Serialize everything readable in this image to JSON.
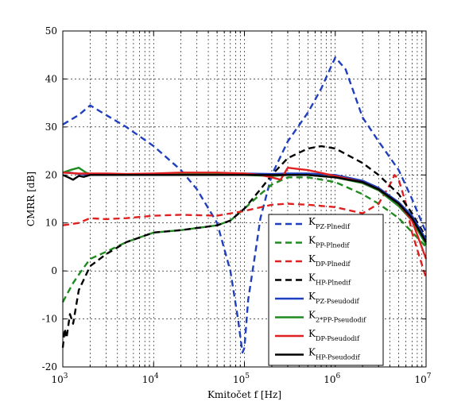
{
  "chart_data": {
    "type": "line",
    "xlabel": "Kmitočet f [Hz]",
    "ylabel": "CMRR [dB]",
    "xscale": "log",
    "xlim": [
      1000,
      10000000
    ],
    "ylim": [
      -20,
      50
    ],
    "grid": "on",
    "legend_position": "lower-right",
    "x_ticks": [
      {
        "value": 1000,
        "base": "10",
        "exp": "3"
      },
      {
        "value": 10000,
        "base": "10",
        "exp": "4"
      },
      {
        "value": 100000,
        "base": "10",
        "exp": "5"
      },
      {
        "value": 1000000,
        "base": "10",
        "exp": "6"
      },
      {
        "value": 10000000,
        "base": "10",
        "exp": "7"
      }
    ],
    "y_ticks": [
      {
        "value": -20,
        "label": "-20"
      },
      {
        "value": -10,
        "label": "-10"
      },
      {
        "value": 0,
        "label": "0"
      },
      {
        "value": 10,
        "label": "10"
      },
      {
        "value": 20,
        "label": "20"
      },
      {
        "value": 30,
        "label": "30"
      },
      {
        "value": 40,
        "label": "40"
      },
      {
        "value": 50,
        "label": "50"
      }
    ],
    "series": [
      {
        "name": "K PZ-Plnedif",
        "name_main": "K",
        "name_sub": "PZ-Plnedif",
        "color": "#1f3fbf",
        "dash": "dashed",
        "x": [
          1000,
          1500,
          2000,
          3000,
          5000,
          10000,
          20000,
          30000,
          50000,
          70000,
          85000,
          95000,
          100000,
          110000,
          130000,
          150000,
          200000,
          300000,
          500000,
          700000,
          1000000,
          1300000,
          2000000,
          3000000,
          5000000,
          7000000,
          10000000
        ],
        "y": [
          30.5,
          32.5,
          34.5,
          32.5,
          30,
          26,
          21,
          17,
          10,
          0,
          -10,
          -17,
          -16,
          -6,
          3,
          11,
          20,
          27,
          33,
          38,
          44.5,
          42,
          32,
          27,
          21,
          15,
          8
        ]
      },
      {
        "name": "K PP-Plnedif",
        "name_main": "K",
        "name_sub": "PP-Plnedif",
        "color": "#1f8a1f",
        "dash": "dashed",
        "x": [
          1000,
          1100,
          1300,
          1600,
          2000,
          3000,
          5000,
          10000,
          20000,
          50000,
          70000,
          100000,
          150000,
          200000,
          300000,
          500000,
          1000000,
          2000000,
          3000000,
          5000000,
          10000000
        ],
        "y": [
          -6.5,
          -5,
          -2.5,
          0,
          2.5,
          4,
          6,
          8,
          8.5,
          9.5,
          10.5,
          13,
          16,
          18,
          19.5,
          19.5,
          18.5,
          16,
          14,
          11,
          5
        ]
      },
      {
        "name": "K DP-Plnedif",
        "name_main": "K",
        "name_sub": "DP-Plnedif",
        "color": "#e02020",
        "dash": "dashed",
        "x": [
          1000,
          1500,
          2000,
          3000,
          5000,
          10000,
          20000,
          50000,
          100000,
          200000,
          300000,
          500000,
          1000000,
          2000000,
          3000000,
          4000000,
          4500000,
          5000000,
          6000000,
          7000000,
          10000000
        ],
        "y": [
          9.5,
          10,
          11,
          10.8,
          11,
          11.5,
          11.7,
          11.5,
          12.5,
          13.8,
          14,
          13.8,
          13.3,
          12,
          14,
          18,
          20,
          19,
          14,
          8,
          -1.5
        ]
      },
      {
        "name": "K HP-Plnedif",
        "name_main": "K",
        "name_sub": "HP-Plnedif",
        "color": "#000000",
        "dash": "dashed",
        "x": [
          1000,
          1050,
          1100,
          1200,
          1300,
          1500,
          2000,
          3000,
          5000,
          10000,
          20000,
          50000,
          70000,
          100000,
          150000,
          200000,
          300000,
          500000,
          700000,
          1000000,
          2000000,
          3000000,
          5000000,
          7000000,
          10000000
        ],
        "y": [
          -16,
          -12,
          -14,
          -9,
          -11,
          -4,
          1,
          3.5,
          6,
          8,
          8.5,
          9.5,
          10.5,
          13,
          17,
          20,
          23.5,
          25.5,
          26,
          25.5,
          22.5,
          20,
          16,
          12,
          7
        ]
      },
      {
        "name": "K PZ-Pseudodif",
        "name_main": "K",
        "name_sub": "PZ-Pseudodif",
        "color": "#1f3fbf",
        "dash": "solid",
        "x": [
          1000,
          1200,
          1500,
          2000,
          3000,
          5000,
          10000,
          20000,
          50000,
          100000,
          200000,
          300000,
          500000,
          1000000,
          2000000,
          3000000,
          5000000,
          7000000,
          10000000
        ],
        "y": [
          20.5,
          20.5,
          20.2,
          20,
          20,
          20,
          20.2,
          20.3,
          20.3,
          20.3,
          20.2,
          20.3,
          20.3,
          20,
          18.8,
          17.3,
          14.3,
          11.5,
          6.5
        ]
      },
      {
        "name": "K 2*PP-Pseudodif",
        "name_main": "K",
        "name_sub": "2*PP-Pseudodif",
        "color": "#1f8a1f",
        "dash": "solid",
        "x": [
          1000,
          1200,
          1500,
          1800,
          2000,
          3000,
          5000,
          10000,
          20000,
          50000,
          100000,
          200000,
          300000,
          500000,
          1000000,
          2000000,
          3000000,
          5000000,
          7000000,
          10000000
        ],
        "y": [
          20.5,
          21,
          21.5,
          20.5,
          20.2,
          20,
          20,
          20.2,
          20.2,
          20.2,
          20,
          19.8,
          20,
          20,
          19.5,
          18.3,
          16.8,
          13.5,
          10.5,
          5.5
        ]
      },
      {
        "name": "K DP-Pseudodif",
        "name_main": "K",
        "name_sub": "DP-Pseudodif",
        "color": "#e02020",
        "dash": "solid",
        "x": [
          1000,
          1500,
          2000,
          3000,
          5000,
          10000,
          20000,
          50000,
          100000,
          150000,
          200000,
          250000,
          300000,
          500000,
          1000000,
          2000000,
          3000000,
          5000000,
          7000000,
          10000000
        ],
        "y": [
          20.5,
          20.3,
          20.3,
          20.3,
          20.2,
          20.3,
          20.5,
          20.5,
          20.3,
          20,
          19.5,
          19,
          21.5,
          21,
          19.8,
          18.5,
          17,
          14,
          10.5,
          2.5
        ]
      },
      {
        "name": "K HP-Pseudodif",
        "name_main": "K",
        "name_sub": "HP-Pseudodif",
        "color": "#000000",
        "dash": "solid",
        "x": [
          1000,
          1150,
          1300,
          1500,
          1700,
          2000,
          3000,
          5000,
          10000,
          20000,
          50000,
          100000,
          200000,
          500000,
          1000000,
          2000000,
          3000000,
          5000000,
          7000000,
          10000000
        ],
        "y": [
          20,
          19.5,
          19,
          19.8,
          19.6,
          20,
          20,
          20,
          20,
          20,
          20,
          20,
          20,
          20,
          19.5,
          18.5,
          17,
          14,
          11,
          6
        ]
      }
    ]
  }
}
